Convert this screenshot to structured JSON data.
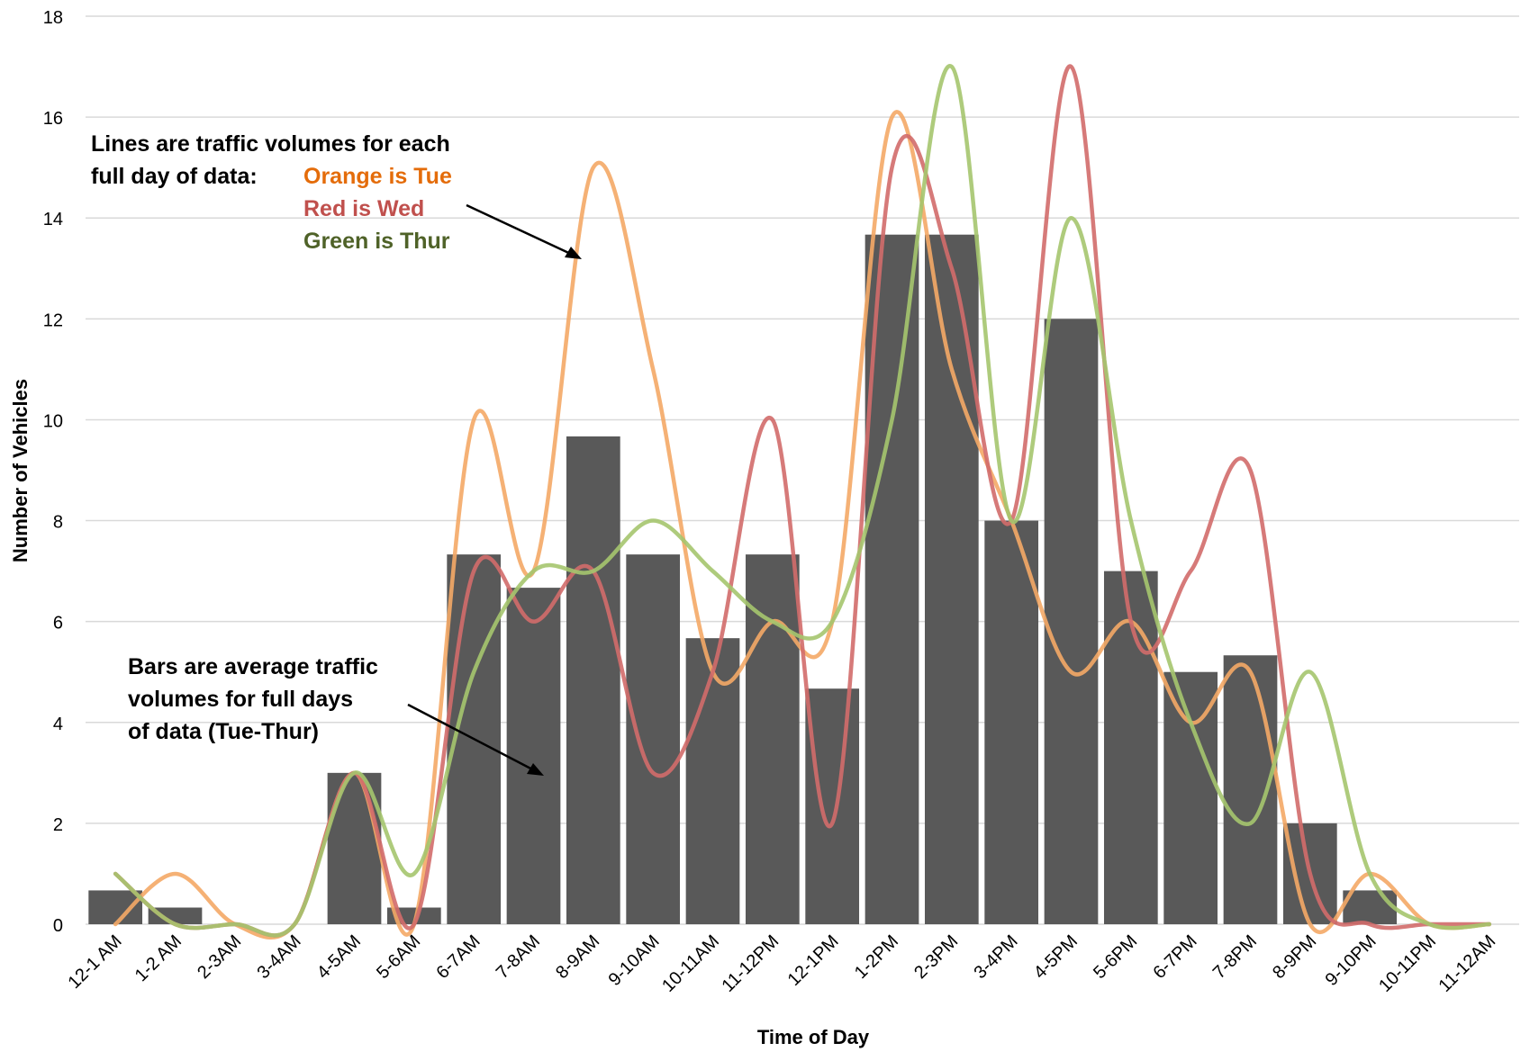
{
  "chart_data": {
    "type": "bar",
    "title": "",
    "xlabel": "Time of Day",
    "ylabel": "Number of Vehicles",
    "ylim": [
      0,
      18
    ],
    "yticks": [
      0,
      2,
      4,
      6,
      8,
      10,
      12,
      14,
      16,
      18
    ],
    "grid": true,
    "categories": [
      "12-1 AM",
      "1-2 AM",
      "2-3AM",
      "3-4AM",
      "4-5AM",
      "5-6AM",
      "6-7AM",
      "7-8AM",
      "8-9AM",
      "9-10AM",
      "10-11AM",
      "11-12PM",
      "12-1PM",
      "1-2PM",
      "2-3PM",
      "3-4PM",
      "4-5PM",
      "5-6PM",
      "6-7PM",
      "7-8PM",
      "8-9PM",
      "9-10PM",
      "10-11PM",
      "11-12AM"
    ],
    "bars": {
      "values": [
        0.67,
        0.33,
        0,
        0,
        3,
        0.33,
        7.33,
        6.67,
        9.67,
        7.33,
        5.67,
        7.33,
        4.67,
        13.67,
        13.67,
        8,
        12,
        7,
        5,
        5.33,
        2,
        0.67,
        0,
        0
      ],
      "color": "#595959"
    },
    "series": [
      {
        "color": "#F4A966",
        "values": [
          0,
          1,
          0,
          0,
          3,
          0,
          10,
          7,
          15,
          11,
          5,
          6,
          6,
          16,
          11,
          8,
          5,
          6,
          4,
          5,
          0,
          1,
          0,
          0
        ]
      },
      {
        "color": "#D26B6A",
        "values": [
          1,
          0,
          0,
          0,
          3,
          0,
          7,
          6,
          7,
          3,
          5,
          10,
          2,
          15,
          13,
          8,
          17,
          6,
          7,
          9,
          1,
          0,
          0,
          0
        ]
      },
      {
        "color": "#A5C56E",
        "values": [
          1,
          0,
          0,
          0,
          3,
          1,
          5,
          7,
          7,
          8,
          7,
          6,
          6,
          10,
          17,
          8,
          14,
          8,
          4,
          2,
          5,
          1,
          0,
          0
        ]
      }
    ],
    "annotations": {
      "lines_note": {
        "line1": "Lines are traffic volumes for each",
        "line2_prefix": "full day of data:",
        "orange": "Orange is Tue",
        "red": "Red is Wed",
        "green": "Green is Thur",
        "colors": {
          "orange": "#E46C0A",
          "red": "#C0504D",
          "green": "#4F6228"
        }
      },
      "bars_note": {
        "lines": [
          "Bars are average traffic",
          "volumes for full days",
          "of data (Tue-Thur)"
        ]
      }
    }
  }
}
